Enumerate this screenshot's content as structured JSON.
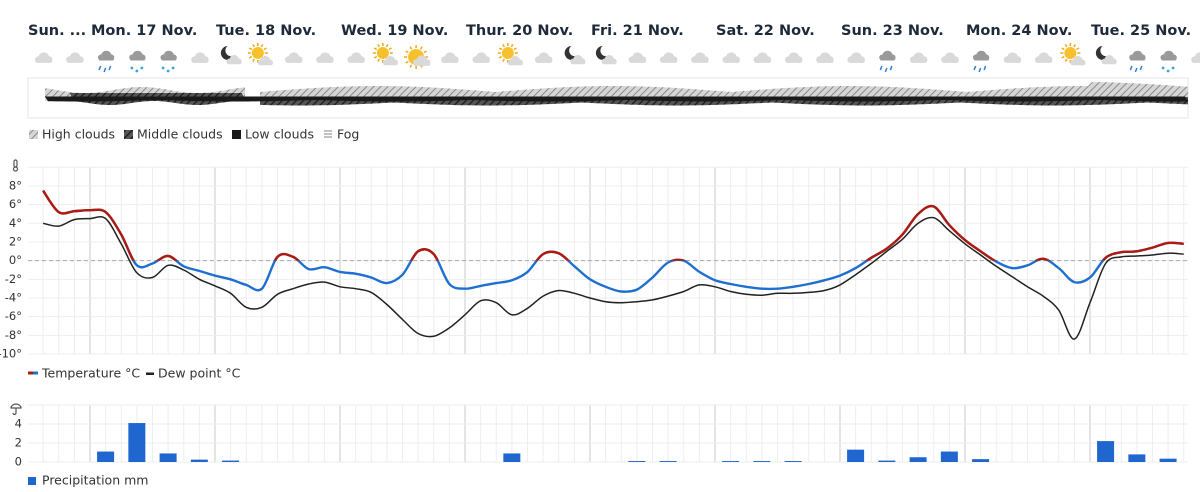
{
  "days": [
    "Sun. ...",
    "Mon. 17 Nov.",
    "Tue. 18 Nov.",
    "Wed. 19 Nov.",
    "Thur. 20 Nov.",
    "Fri. 21 Nov.",
    "Sat. 22 Nov.",
    "Sun. 23 Nov.",
    "Mon. 24 Nov.",
    "Tue. 25 Nov."
  ],
  "cloud_legend": [
    "High clouds",
    "Middle clouds",
    "Low clouds",
    "Fog"
  ],
  "chart_data": [
    {
      "type": "line",
      "series": [
        {
          "name": "Temperature °C",
          "color": "#1f6fd1",
          "above_zero_color": "#b0190e",
          "values": [
            7.5,
            5.2,
            5.3,
            5.4,
            5.2,
            2.8,
            -0.5,
            -0.3,
            0.5,
            -0.6,
            -1.1,
            -1.6,
            -2,
            -2.6,
            -3,
            0.4,
            0.4,
            -0.9,
            -0.7,
            -1.2,
            -1.4,
            -1.8,
            -2.4,
            -1.5,
            1,
            0.7,
            -2.5,
            -3,
            -2.7,
            -2.4,
            -2.1,
            -1.2,
            0.7,
            0.8,
            -0.6,
            -2,
            -2.8,
            -3.3,
            -3.1,
            -1.8,
            -0.2,
            0,
            -1.2,
            -2.1,
            -2.5,
            -2.8,
            -3,
            -3,
            -2.8,
            -2.5,
            -2.1,
            -1.6,
            -0.8,
            0.3,
            1.3,
            2.8,
            5,
            5.8,
            3.8,
            2.2,
            1,
            -0.1,
            -0.8,
            -0.5,
            0.2,
            -0.8,
            -2.3,
            -1.8,
            0.3,
            0.9,
            1,
            1.4,
            1.9,
            1.8
          ]
        },
        {
          "name": "Dew point °C",
          "color": "#222222",
          "values": [
            4,
            3.7,
            4.4,
            4.5,
            4.5,
            1.8,
            -1.3,
            -1.8,
            -0.5,
            -1,
            -2,
            -2.7,
            -3.5,
            -5,
            -5,
            -3.6,
            -3,
            -2.5,
            -2.3,
            -2.8,
            -3,
            -3.4,
            -4.7,
            -6.3,
            -7.8,
            -8.1,
            -7.2,
            -5.8,
            -4.3,
            -4.5,
            -5.8,
            -5.1,
            -3.8,
            -3.2,
            -3.5,
            -4,
            -4.4,
            -4.5,
            -4.4,
            -4.2,
            -3.8,
            -3.3,
            -2.6,
            -2.8,
            -3.3,
            -3.6,
            -3.7,
            -3.5,
            -3.5,
            -3.4,
            -3.2,
            -2.6,
            -1.5,
            -0.3,
            1,
            2.3,
            4,
            4.6,
            3.2,
            1.8,
            0.6,
            -0.6,
            -1.7,
            -2.8,
            -3.8,
            -5.3,
            -8.4,
            -4.5,
            -0.3,
            0.4,
            0.5,
            0.6,
            0.8,
            0.7
          ]
        }
      ],
      "ylim": [
        -10,
        10
      ],
      "yticks": [
        {
          "value": 8,
          "label": "8°"
        },
        {
          "value": 6,
          "label": "6°"
        },
        {
          "value": 4,
          "label": "4°"
        },
        {
          "value": 2,
          "label": "2°"
        },
        {
          "value": 0,
          "label": "0°"
        },
        {
          "value": -2,
          "label": "-2°"
        },
        {
          "value": -4,
          "label": "-4°"
        },
        {
          "value": -6,
          "label": "-6°"
        },
        {
          "value": -8,
          "label": "-8°"
        },
        {
          "value": -10,
          "label": "-10°"
        }
      ],
      "grid": true,
      "zero_line": true
    },
    {
      "type": "bar",
      "series": [
        {
          "name": "Precipitation mm",
          "color": "#1f66cf",
          "values": [
            0,
            0,
            1.1,
            4.1,
            0.9,
            0.25,
            0.15,
            0,
            0,
            0,
            0,
            0,
            0,
            0,
            0,
            0.9,
            0,
            0,
            0,
            0.1,
            0.1,
            0,
            0.1,
            0.1,
            0.1,
            0,
            1.3,
            0.15,
            0.5,
            1.1,
            0.3,
            0,
            0,
            0,
            2.2,
            0.8,
            0.35
          ]
        }
      ],
      "ylim": [
        0,
        5
      ],
      "yticks": [
        0,
        2,
        4
      ],
      "grid": true
    }
  ]
}
